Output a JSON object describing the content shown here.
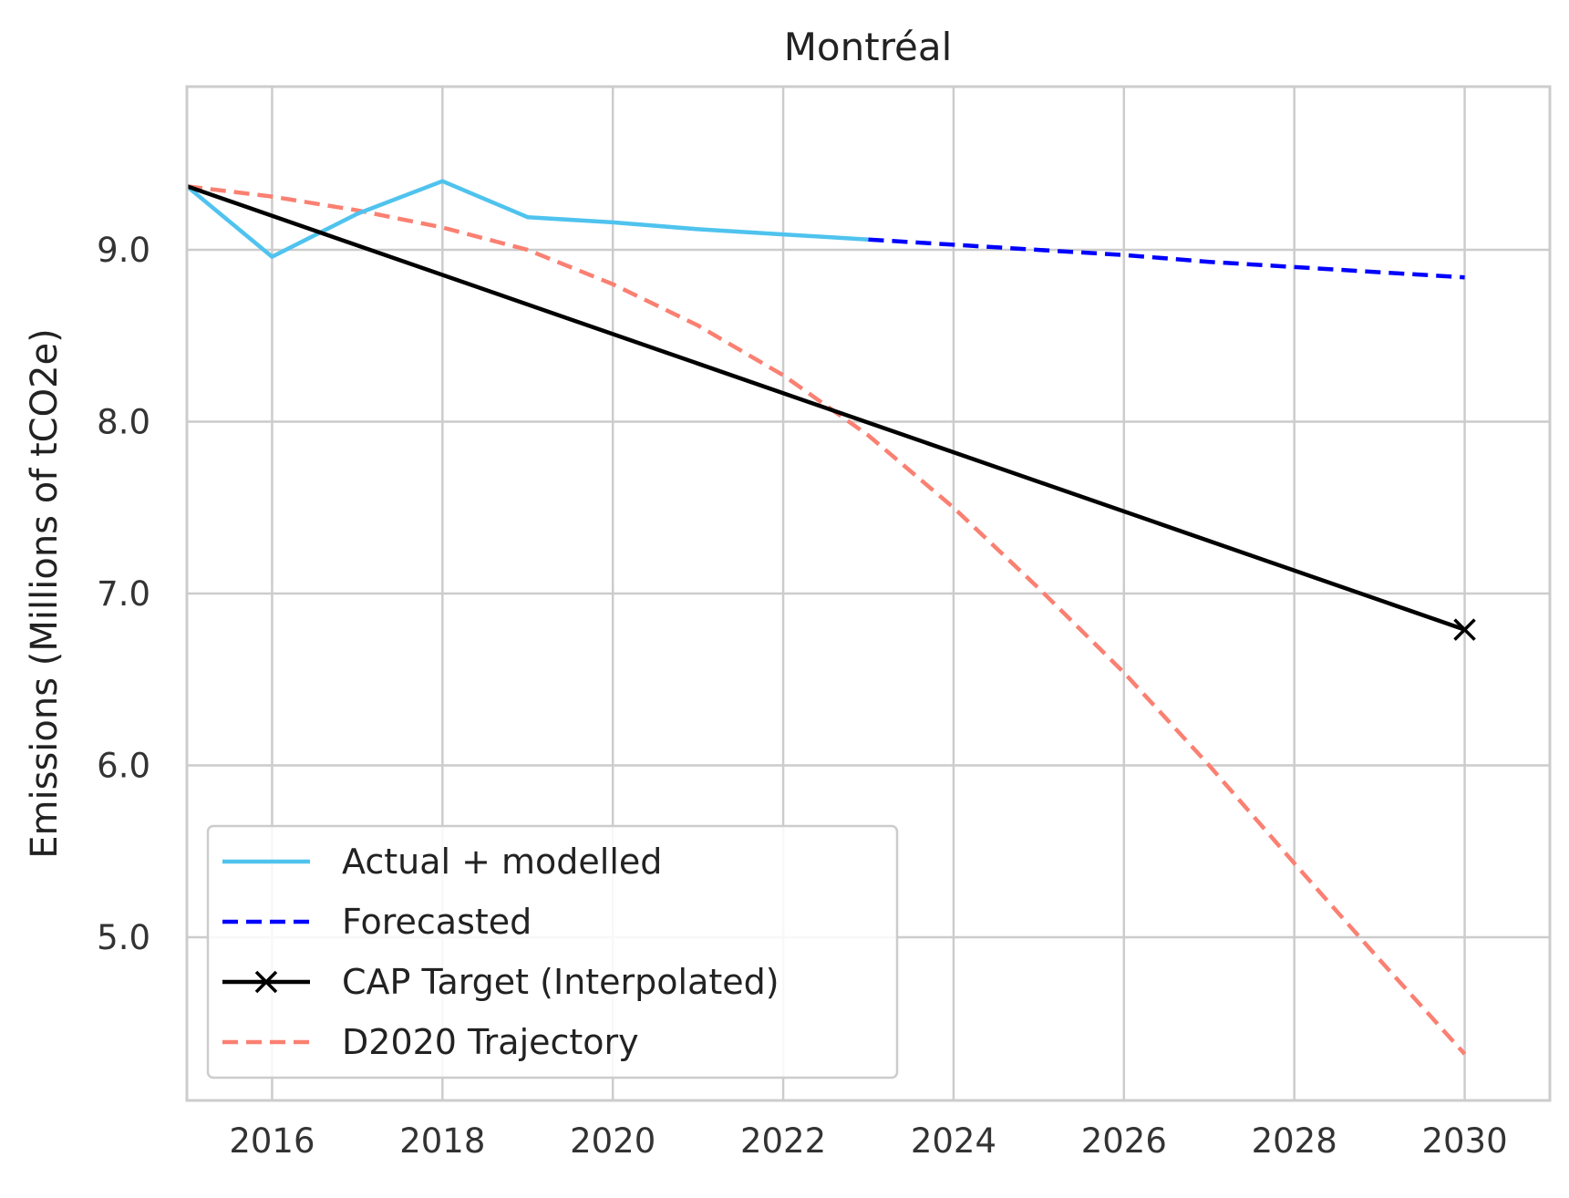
{
  "chart_data": {
    "type": "line",
    "title": "Montréal",
    "xlabel": "",
    "ylabel": "Emissions (Millions of tCO2e)",
    "xlim": [
      2015,
      2031
    ],
    "ylim": [
      4.05,
      9.95
    ],
    "xticks": [
      2016,
      2018,
      2020,
      2022,
      2024,
      2026,
      2028,
      2030
    ],
    "yticks": [
      5.0,
      6.0,
      7.0,
      8.0,
      9.0
    ],
    "ytick_labels": [
      "5.0",
      "6.0",
      "7.0",
      "8.0",
      "9.0"
    ],
    "grid": true,
    "legend_position": "lower-left",
    "series": [
      {
        "name": "Actual + modelled",
        "color": "#4fc3ee",
        "style": "solid",
        "x": [
          2015,
          2016,
          2017,
          2018,
          2019,
          2020,
          2021,
          2022,
          2023
        ],
        "y": [
          9.37,
          8.96,
          9.21,
          9.4,
          9.19,
          9.16,
          9.12,
          9.09,
          9.06
        ]
      },
      {
        "name": "Forecasted",
        "color": "#0000ff",
        "style": "dashed",
        "x": [
          2023,
          2024,
          2025,
          2026,
          2027,
          2028,
          2029,
          2030
        ],
        "y": [
          9.06,
          9.03,
          9.0,
          8.97,
          8.93,
          8.9,
          8.87,
          8.84
        ]
      },
      {
        "name": "CAP Target (Interpolated)",
        "color": "#000000",
        "style": "solid",
        "marker": "x",
        "x": [
          2015,
          2030
        ],
        "y": [
          9.37,
          6.79
        ]
      },
      {
        "name": "D2020 Trajectory",
        "color": "#fa8072",
        "style": "dashed",
        "x": [
          2015,
          2016,
          2017,
          2018,
          2019,
          2020,
          2021,
          2022,
          2023,
          2024,
          2025,
          2026,
          2027,
          2028,
          2029,
          2030
        ],
        "y": [
          9.37,
          9.31,
          9.23,
          9.13,
          9.0,
          8.8,
          8.56,
          8.27,
          7.92,
          7.5,
          7.03,
          6.54,
          6.0,
          5.43,
          4.87,
          4.32
        ]
      }
    ]
  }
}
